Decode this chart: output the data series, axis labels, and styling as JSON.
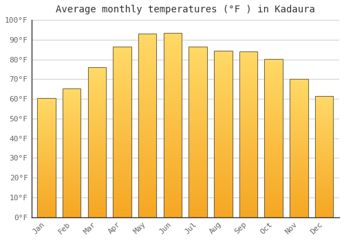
{
  "title": "Average monthly temperatures (°F ) in Kadaura",
  "months": [
    "Jan",
    "Feb",
    "Mar",
    "Apr",
    "May",
    "Jun",
    "Jul",
    "Aug",
    "Sep",
    "Oct",
    "Nov",
    "Dec"
  ],
  "values": [
    60.5,
    65.3,
    76.1,
    86.3,
    93.2,
    93.5,
    86.5,
    84.3,
    84.1,
    80.1,
    70.2,
    61.5
  ],
  "bar_color_bottom": "#F5A623",
  "bar_color_top": "#FFD966",
  "bar_edge_color": "#555555",
  "ylim": [
    0,
    100
  ],
  "ytick_step": 10,
  "background_color": "#ffffff",
  "grid_color": "#cccccc",
  "title_fontsize": 10,
  "tick_fontsize": 8,
  "label_color": "#666666"
}
